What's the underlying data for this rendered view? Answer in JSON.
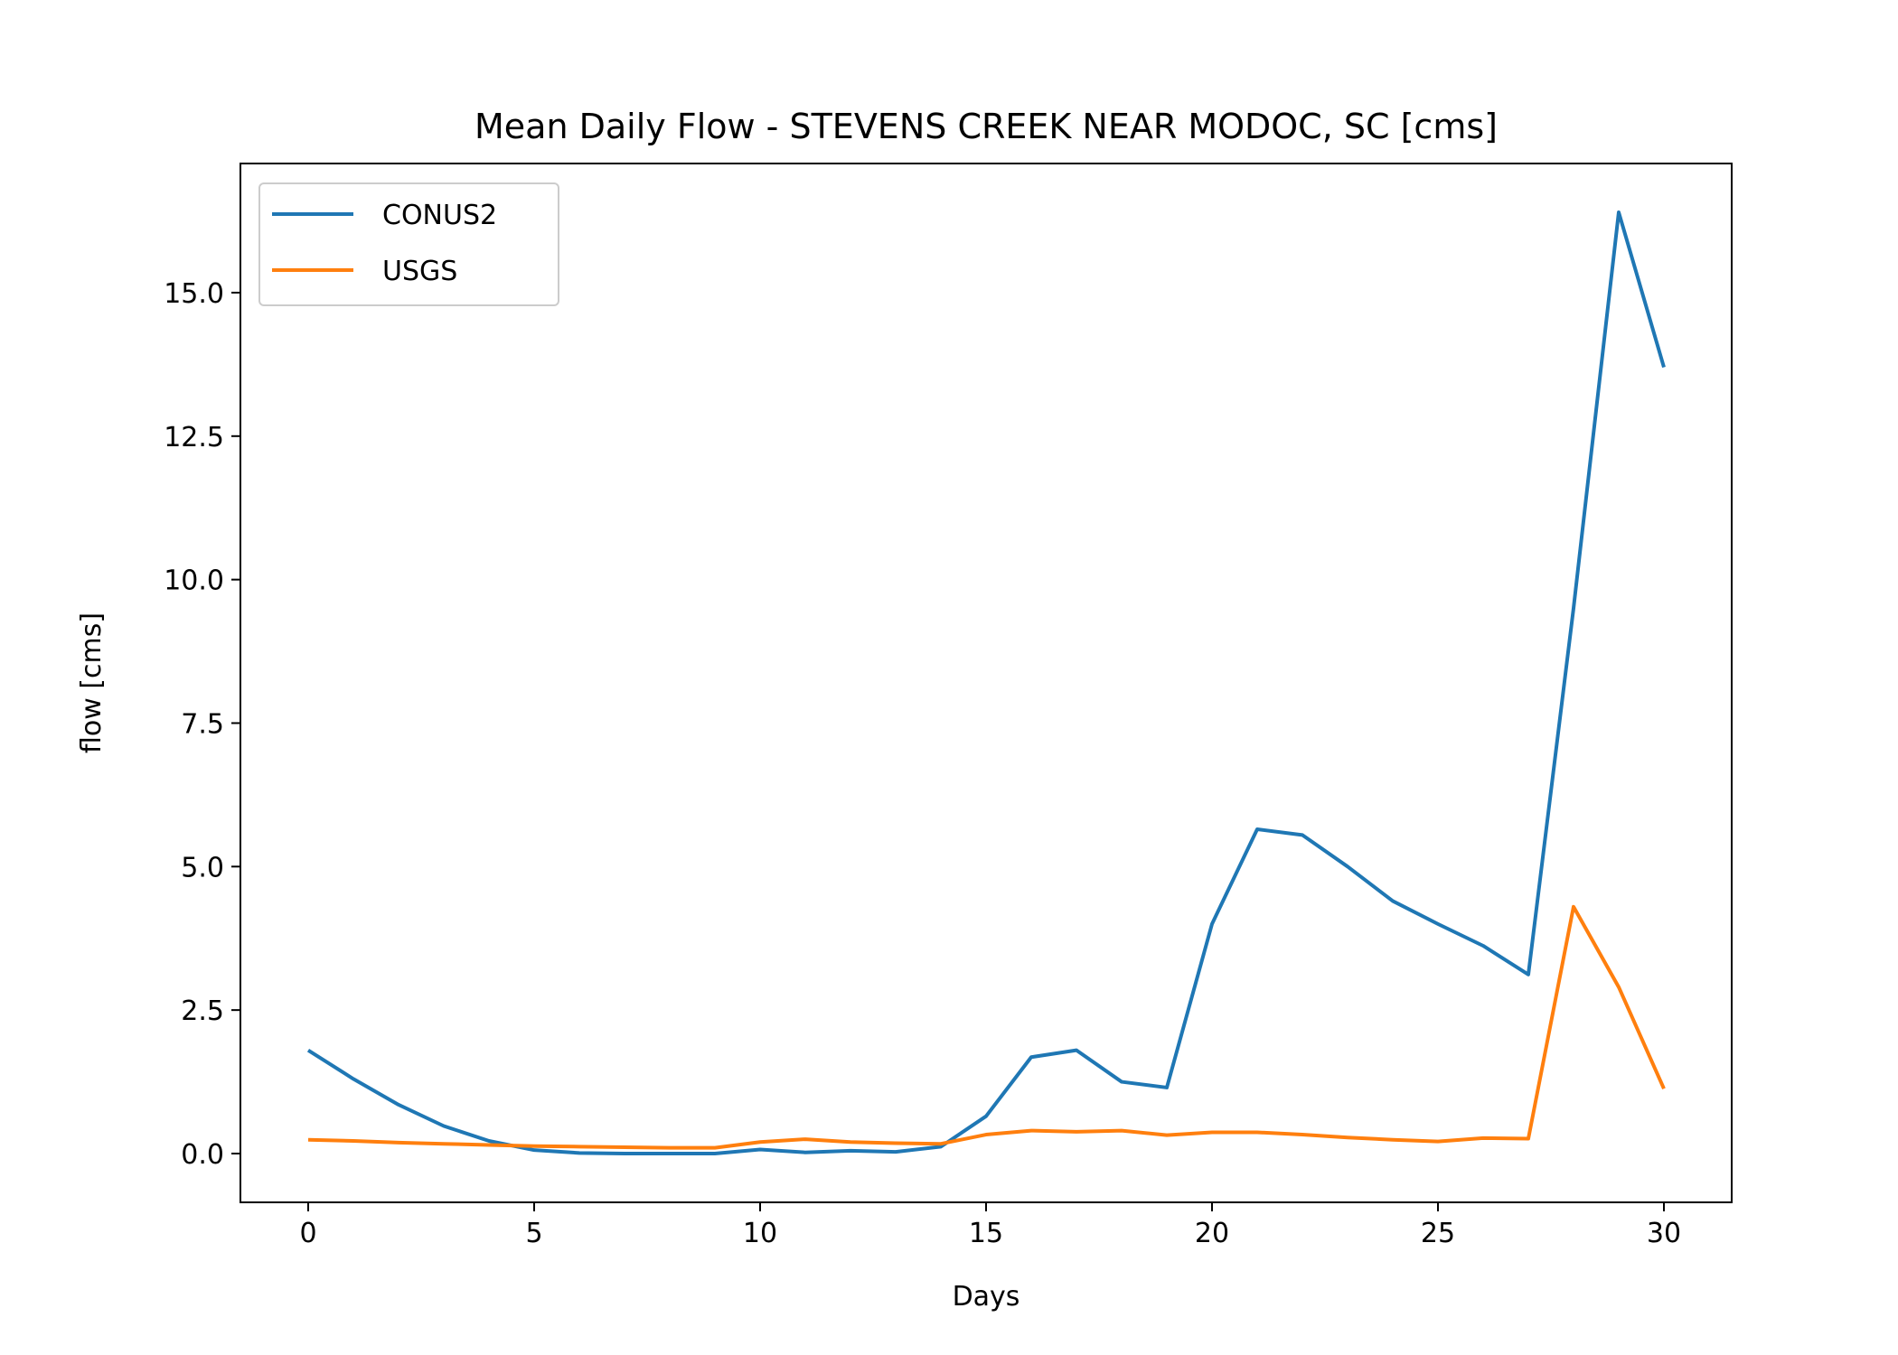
{
  "chart_data": {
    "type": "line",
    "title": "Mean Daily Flow - STEVENS CREEK NEAR MODOC, SC [cms]",
    "xlabel": "Days",
    "ylabel": "flow [cms]",
    "xlim": [
      -1.5,
      31.5
    ],
    "ylim": [
      -0.85,
      17.25
    ],
    "xticks": [
      0,
      5,
      10,
      15,
      20,
      25,
      30
    ],
    "xtick_labels": [
      "0",
      "5",
      "10",
      "15",
      "20",
      "25",
      "30"
    ],
    "yticks": [
      0.0,
      2.5,
      5.0,
      7.5,
      10.0,
      12.5,
      15.0
    ],
    "ytick_labels": [
      "0.0",
      "2.5",
      "5.0",
      "7.5",
      "10.0",
      "12.5",
      "15.0"
    ],
    "grid": false,
    "legend_position": "upper-left",
    "x": [
      0,
      1,
      2,
      3,
      4,
      5,
      6,
      7,
      8,
      9,
      10,
      11,
      12,
      13,
      14,
      15,
      16,
      17,
      18,
      19,
      20,
      21,
      22,
      23,
      24,
      25,
      26,
      27,
      28,
      29,
      30
    ],
    "series": [
      {
        "name": "CONUS2",
        "color": "#1f77b4",
        "values": [
          1.8,
          1.3,
          0.85,
          0.48,
          0.22,
          0.06,
          0.01,
          0.0,
          0.0,
          0.0,
          0.07,
          0.02,
          0.05,
          0.03,
          0.12,
          0.65,
          1.68,
          1.8,
          1.25,
          1.15,
          4.0,
          5.65,
          5.55,
          5.0,
          4.4,
          4.0,
          3.62,
          3.12,
          9.5,
          16.4,
          13.7
        ]
      },
      {
        "name": "USGS",
        "color": "#ff7f0e",
        "values": [
          0.24,
          0.22,
          0.19,
          0.17,
          0.15,
          0.13,
          0.12,
          0.11,
          0.1,
          0.1,
          0.2,
          0.25,
          0.2,
          0.18,
          0.17,
          0.33,
          0.4,
          0.38,
          0.4,
          0.32,
          0.37,
          0.37,
          0.33,
          0.28,
          0.24,
          0.21,
          0.27,
          0.26,
          4.3,
          2.9,
          1.13
        ]
      }
    ]
  }
}
